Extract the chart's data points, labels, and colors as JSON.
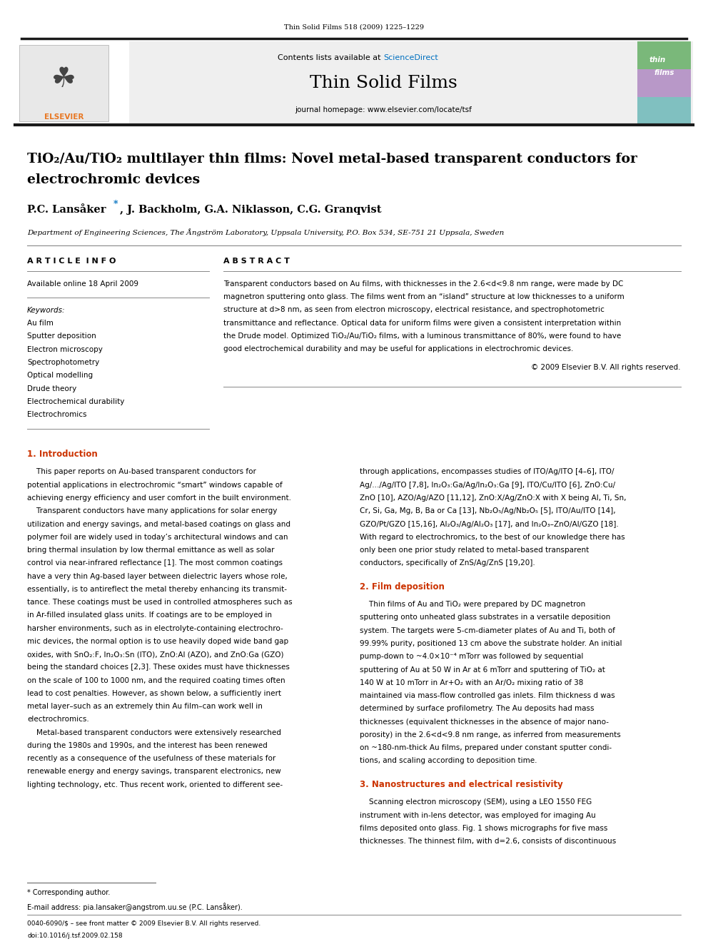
{
  "page_width": 9.92,
  "page_height": 13.23,
  "bg_color": "#ffffff",
  "journal_ref": "Thin Solid Films 518 (2009) 1225–1229",
  "contents_text": "Contents lists available at ",
  "sciencedirect_text": "ScienceDirect",
  "journal_name": "Thin Solid Films",
  "journal_homepage": "journal homepage: www.elsevier.com/locate/tsf",
  "title_line1": "TiO₂/Au/TiO₂ multilayer thin films: Novel metal-based transparent conductors for",
  "title_line2": "electrochromic devices",
  "affiliation": "Department of Engineering Sciences, The Ångström Laboratory, Uppsala University, P.O. Box 534, SE-751 21 Uppsala, Sweden",
  "article_info_label": "A R T I C L E  I N F O",
  "abstract_label": "A B S T R A C T",
  "available_online": "Available online 18 April 2009",
  "keywords_label": "Keywords:",
  "keywords": [
    "Au film",
    "Sputter deposition",
    "Electron microscopy",
    "Spectrophotometry",
    "Optical modelling",
    "Drude theory",
    "Electrochemical durability",
    "Electrochromics"
  ],
  "copyright": "© 2009 Elsevier B.V. All rights reserved.",
  "section1_title": "1. Introduction",
  "section2_title": "2. Film deposition",
  "section3_title": "3. Nanostructures and electrical resistivity",
  "footnote_star": "* Corresponding author.",
  "footnote_email": "E-mail address: pia.lansaker@angstrom.uu.se (P.C. Lansåker).",
  "footer_left": "0040-6090/$ – see front matter © 2009 Elsevier B.V. All rights reserved.",
  "footer_doi": "doi:10.1016/j.tsf.2009.02.158",
  "sciencedirect_color": "#0070c0",
  "elsevier_orange": "#e87722",
  "section_title_color": "#cc3300",
  "link_color": "#0070c0",
  "abstract_lines": [
    "Transparent conductors based on Au films, with thicknesses in the 2.6<d<9.8 nm range, were made by DC",
    "magnetron sputtering onto glass. The films went from an “island” structure at low thicknesses to a uniform",
    "structure at d>8 nm, as seen from electron microscopy, electrical resistance, and spectrophotometric",
    "transmittance and reflectance. Optical data for uniform films were given a consistent interpretation within",
    "the Drude model. Optimized TiO₂/Au/TiO₂ films, with a luminous transmittance of 80%, were found to have",
    "good electrochemical durability and may be useful for applications in electrochromic devices."
  ],
  "col1_text": [
    "    This paper reports on Au-based transparent conductors for",
    "potential applications in electrochromic “smart” windows capable of",
    "achieving energy efficiency and user comfort in the built environment.",
    "    Transparent conductors have many applications for solar energy",
    "utilization and energy savings, and metal-based coatings on glass and",
    "polymer foil are widely used in today’s architectural windows and can",
    "bring thermal insulation by low thermal emittance as well as solar",
    "control via near-infrared reflectance [1]. The most common coatings",
    "have a very thin Ag-based layer between dielectric layers whose role,",
    "essentially, is to antireflect the metal thereby enhancing its transmit-",
    "tance. These coatings must be used in controlled atmospheres such as",
    "in Ar-filled insulated glass units. If coatings are to be employed in",
    "harsher environments, such as in electrolyte-containing electrochro-",
    "mic devices, the normal option is to use heavily doped wide band gap",
    "oxides, with SnO₂:F, In₂O₃:Sn (ITO), ZnO:Al (AZO), and ZnO:Ga (GZO)",
    "being the standard choices [2,3]. These oxides must have thicknesses",
    "on the scale of 100 to 1000 nm, and the required coating times often",
    "lead to cost penalties. However, as shown below, a sufficiently inert",
    "metal layer–such as an extremely thin Au film–can work well in",
    "electrochromics.",
    "    Metal-based transparent conductors were extensively researched",
    "during the 1980s and 1990s, and the interest has been renewed",
    "recently as a consequence of the usefulness of these materials for",
    "renewable energy and energy savings, transparent electronics, new",
    "lighting technology, etc. Thus recent work, oriented to different see-"
  ],
  "col2_text_intro": [
    "through applications, encompasses studies of ITO/Ag/ITO [4–6], ITO/",
    "Ag/.../Ag/ITO [7,8], In₂O₃:Ga/Ag/In₂O₃:Ga [9], ITO/Cu/ITO [6], ZnO:Cu/",
    "ZnO [10], AZO/Ag/AZO [11,12], ZnO:X/Ag/ZnO:X with X being Al, Ti, Sn,",
    "Cr, Si, Ga, Mg, B, Ba or Ca [13], Nb₂O₅/Ag/Nb₂O₅ [5], ITO/Au/ITO [14],",
    "GZO/Pt/GZO [15,16], Al₂O₃/Ag/Al₂O₃ [17], and In₂O₃–ZnO/Al/GZO [18].",
    "With regard to electrochromics, to the best of our knowledge there has",
    "only been one prior study related to metal-based transparent",
    "conductors, specifically of ZnS/Ag/ZnS [19,20]."
  ],
  "col2_text_sec2": [
    "    Thin films of Au and TiO₂ were prepared by DC magnetron",
    "sputtering onto unheated glass substrates in a versatile deposition",
    "system. The targets were 5-cm-diameter plates of Au and Ti, both of",
    "99.99% purity, positioned 13 cm above the substrate holder. An initial",
    "pump-down to ~4.0×10⁻⁴ mTorr was followed by sequential",
    "sputtering of Au at 50 W in Ar at 6 mTorr and sputtering of TiO₂ at",
    "140 W at 10 mTorr in Ar+O₂ with an Ar/O₂ mixing ratio of 38",
    "maintained via mass-flow controlled gas inlets. Film thickness d was",
    "determined by surface profilometry. The Au deposits had mass",
    "thicknesses (equivalent thicknesses in the absence of major nano-",
    "porosity) in the 2.6<d<9.8 nm range, as inferred from measurements",
    "on ~180-nm-thick Au films, prepared under constant sputter condi-",
    "tions, and scaling according to deposition time."
  ],
  "col2_text_sec3": [
    "    Scanning electron microscopy (SEM), using a LEO 1550 FEG",
    "instrument with in-lens detector, was employed for imaging Au",
    "films deposited onto glass. Fig. 1 shows micrographs for five mass",
    "thicknesses. The thinnest film, with d=2.6, consists of discontinuous"
  ]
}
